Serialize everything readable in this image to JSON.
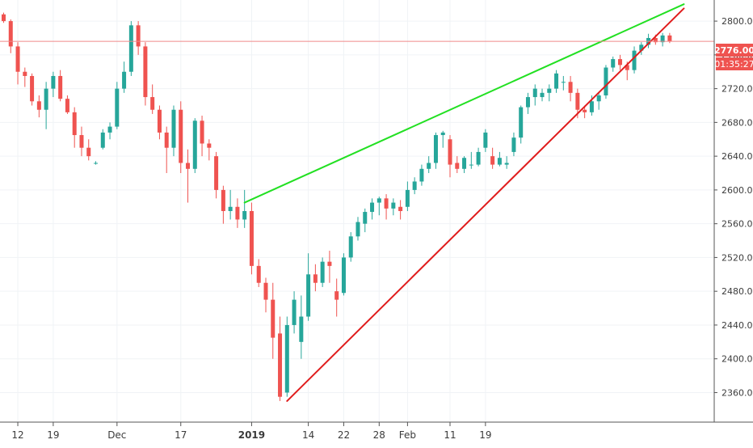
{
  "chart_data": {
    "type": "candlestick",
    "ylim": [
      2325,
      2825
    ],
    "y_ticks": [
      "2360.00",
      "2400.00",
      "2440.00",
      "2480.00",
      "2520.00",
      "2560.00",
      "2600.00",
      "2640.00",
      "2680.00",
      "2720.00",
      "2760.00",
      "2800.00"
    ],
    "x_ticks": [
      {
        "index": 2,
        "label": "12",
        "bold": false
      },
      {
        "index": 7,
        "label": "19",
        "bold": false
      },
      {
        "index": 16,
        "label": "Dec",
        "bold": false
      },
      {
        "index": 25,
        "label": "17",
        "bold": false
      },
      {
        "index": 35,
        "label": "2019",
        "bold": true
      },
      {
        "index": 43,
        "label": "14",
        "bold": false
      },
      {
        "index": 48,
        "label": "22",
        "bold": false
      },
      {
        "index": 53,
        "label": "28",
        "bold": false
      },
      {
        "index": 57,
        "label": "Feb",
        "bold": false
      },
      {
        "index": 63,
        "label": "11",
        "bold": false
      },
      {
        "index": 68,
        "label": "19",
        "bold": false
      }
    ],
    "candles": [
      [
        2808,
        2810,
        2798,
        2800
      ],
      [
        2800,
        2802,
        2762,
        2770
      ],
      [
        2770,
        2775,
        2725,
        2740
      ],
      [
        2740,
        2745,
        2722,
        2735
      ],
      [
        2735,
        2738,
        2700,
        2705
      ],
      [
        2705,
        2712,
        2686,
        2695
      ],
      [
        2695,
        2728,
        2672,
        2720
      ],
      [
        2720,
        2740,
        2710,
        2735
      ],
      [
        2735,
        2742,
        2705,
        2708
      ],
      [
        2708,
        2712,
        2690,
        2692
      ],
      [
        2692,
        2698,
        2650,
        2665
      ],
      [
        2665,
        2675,
        2640,
        2650
      ],
      [
        2650,
        2660,
        2635,
        2640
      ],
      [
        2632,
        2634,
        2630,
        2632
      ],
      [
        2650,
        2672,
        2648,
        2668
      ],
      [
        2668,
        2680,
        2660,
        2675
      ],
      [
        2675,
        2728,
        2672,
        2720
      ],
      [
        2720,
        2752,
        2715,
        2740
      ],
      [
        2740,
        2800,
        2735,
        2795
      ],
      [
        2795,
        2800,
        2760,
        2770
      ],
      [
        2770,
        2775,
        2700,
        2710
      ],
      [
        2710,
        2725,
        2690,
        2695
      ],
      [
        2695,
        2700,
        2660,
        2668
      ],
      [
        2668,
        2675,
        2620,
        2650
      ],
      [
        2650,
        2700,
        2640,
        2695
      ],
      [
        2695,
        2705,
        2620,
        2632
      ],
      [
        2632,
        2648,
        2585,
        2625
      ],
      [
        2625,
        2685,
        2620,
        2682
      ],
      [
        2682,
        2688,
        2640,
        2655
      ],
      [
        2655,
        2660,
        2635,
        2650
      ],
      [
        2640,
        2645,
        2590,
        2600
      ],
      [
        2600,
        2605,
        2560,
        2575
      ],
      [
        2575,
        2600,
        2565,
        2580
      ],
      [
        2580,
        2590,
        2555,
        2565
      ],
      [
        2565,
        2600,
        2555,
        2575
      ],
      [
        2575,
        2585,
        2500,
        2510
      ],
      [
        2510,
        2518,
        2485,
        2490
      ],
      [
        2490,
        2496,
        2455,
        2470
      ],
      [
        2470,
        2490,
        2400,
        2425
      ],
      [
        2430,
        2450,
        2350,
        2355
      ],
      [
        2360,
        2450,
        2355,
        2440
      ],
      [
        2440,
        2480,
        2430,
        2470
      ],
      [
        2420,
        2475,
        2400,
        2450
      ],
      [
        2450,
        2525,
        2445,
        2500
      ],
      [
        2500,
        2512,
        2480,
        2490
      ],
      [
        2490,
        2520,
        2485,
        2515
      ],
      [
        2515,
        2528,
        2490,
        2510
      ],
      [
        2480,
        2495,
        2450,
        2470
      ],
      [
        2478,
        2525,
        2475,
        2520
      ],
      [
        2520,
        2550,
        2515,
        2545
      ],
      [
        2545,
        2568,
        2540,
        2562
      ],
      [
        2560,
        2578,
        2550,
        2574
      ],
      [
        2574,
        2590,
        2565,
        2585
      ],
      [
        2585,
        2592,
        2570,
        2590
      ],
      [
        2590,
        2595,
        2565,
        2578
      ],
      [
        2578,
        2590,
        2570,
        2585
      ],
      [
        2580,
        2588,
        2565,
        2575
      ],
      [
        2580,
        2610,
        2575,
        2600
      ],
      [
        2600,
        2615,
        2595,
        2610
      ],
      [
        2610,
        2630,
        2605,
        2625
      ],
      [
        2625,
        2640,
        2620,
        2632
      ],
      [
        2632,
        2668,
        2625,
        2665
      ],
      [
        2665,
        2670,
        2650,
        2668
      ],
      [
        2660,
        2665,
        2615,
        2630
      ],
      [
        2632,
        2640,
        2620,
        2625
      ],
      [
        2625,
        2640,
        2620,
        2638
      ],
      [
        2630,
        2645,
        2625,
        2630
      ],
      [
        2630,
        2650,
        2628,
        2645
      ],
      [
        2650,
        2672,
        2645,
        2668
      ],
      [
        2640,
        2650,
        2625,
        2630
      ],
      [
        2630,
        2645,
        2628,
        2638
      ],
      [
        2630,
        2640,
        2625,
        2632
      ],
      [
        2645,
        2668,
        2640,
        2662
      ],
      [
        2662,
        2700,
        2655,
        2698
      ],
      [
        2698,
        2715,
        2690,
        2710
      ],
      [
        2710,
        2725,
        2700,
        2720
      ],
      [
        2710,
        2720,
        2705,
        2715
      ],
      [
        2715,
        2725,
        2705,
        2720
      ],
      [
        2720,
        2742,
        2715,
        2738
      ],
      [
        2728,
        2735,
        2718,
        2728
      ],
      [
        2728,
        2735,
        2705,
        2715
      ],
      [
        2715,
        2720,
        2685,
        2695
      ],
      [
        2695,
        2700,
        2685,
        2692
      ],
      [
        2692,
        2712,
        2688,
        2705
      ],
      [
        2705,
        2715,
        2695,
        2712
      ],
      [
        2712,
        2748,
        2708,
        2745
      ],
      [
        2745,
        2758,
        2740,
        2755
      ],
      [
        2755,
        2760,
        2742,
        2748
      ],
      [
        2748,
        2752,
        2730,
        2742
      ],
      [
        2742,
        2770,
        2738,
        2765
      ],
      [
        2765,
        2775,
        2760,
        2772
      ],
      [
        2772,
        2785,
        2768,
        2780
      ],
      [
        2780,
        2784,
        2772,
        2775
      ],
      [
        2775,
        2786,
        2770,
        2783
      ],
      [
        2783,
        2786,
        2774,
        2776
      ]
    ],
    "current_price": 2776.0,
    "current_price_label": "2776.00",
    "countdown_label": "01:35:27",
    "trendlines": [
      {
        "color": "#22e022",
        "from": [
          34,
          2585
        ],
        "to": [
          96,
          2820
        ]
      },
      {
        "color": "#e01c1c",
        "from": [
          40,
          2350
        ],
        "to": [
          96,
          2815
        ]
      }
    ],
    "colors": {
      "up": "#26a69a",
      "down": "#ef5350",
      "grid": "#f0f3f6",
      "axis": "#555555",
      "price_line": "#ef8a8a",
      "price_badge": "#ef5350"
    }
  }
}
